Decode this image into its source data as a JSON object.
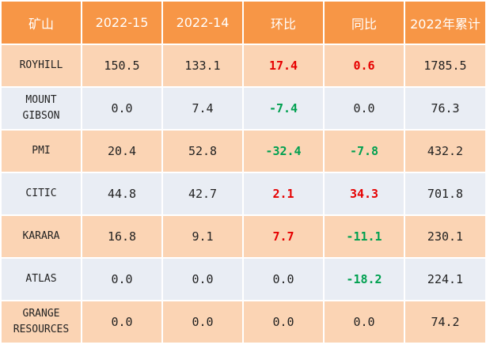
{
  "header": {
    "col_mine": "矿山",
    "col_week_15": "2022-15",
    "col_week_14": "2022-14",
    "col_wow": "环比",
    "col_yoy": "同比",
    "col_ytd": "2022年累计"
  },
  "colors": {
    "header_bg": "#f79646",
    "row_orange": "#fbd4b4",
    "row_blue": "#e9edf4",
    "positive_change": "#e60000",
    "negative_change": "#00a050"
  },
  "rows": [
    {
      "mine_lines": [
        "ROYHILL"
      ],
      "week_15": "150.5",
      "week_14": "133.1",
      "wow": "17.4",
      "yoy": "0.6",
      "ytd": "1785.5",
      "wow_sign": "pos",
      "yoy_sign": "pos"
    },
    {
      "mine_lines": [
        "MOUNT",
        "GIBSON"
      ],
      "week_15": "0.0",
      "week_14": "7.4",
      "wow": "-7.4",
      "yoy": "0.0",
      "ytd": "76.3",
      "wow_sign": "neg",
      "yoy_sign": "zero"
    },
    {
      "mine_lines": [
        "PMI"
      ],
      "week_15": "20.4",
      "week_14": "52.8",
      "wow": "-32.4",
      "yoy": "-7.8",
      "ytd": "432.2",
      "wow_sign": "neg",
      "yoy_sign": "neg"
    },
    {
      "mine_lines": [
        "CITIC"
      ],
      "week_15": "44.8",
      "week_14": "42.7",
      "wow": "2.1",
      "yoy": "34.3",
      "ytd": "701.8",
      "wow_sign": "pos",
      "yoy_sign": "pos"
    },
    {
      "mine_lines": [
        "KARARA"
      ],
      "week_15": "16.8",
      "week_14": "9.1",
      "wow": "7.7",
      "yoy": "-11.1",
      "ytd": "230.1",
      "wow_sign": "pos",
      "yoy_sign": "neg"
    },
    {
      "mine_lines": [
        "ATLAS"
      ],
      "week_15": "0.0",
      "week_14": "0.0",
      "wow": "0.0",
      "yoy": "-18.2",
      "ytd": "224.1",
      "wow_sign": "zero",
      "yoy_sign": "neg"
    },
    {
      "mine_lines": [
        "GRANGE",
        "RESOURCES"
      ],
      "week_15": "0.0",
      "week_14": "0.0",
      "wow": "0.0",
      "yoy": "0.0",
      "ytd": "74.2",
      "wow_sign": "zero",
      "yoy_sign": "zero"
    }
  ]
}
